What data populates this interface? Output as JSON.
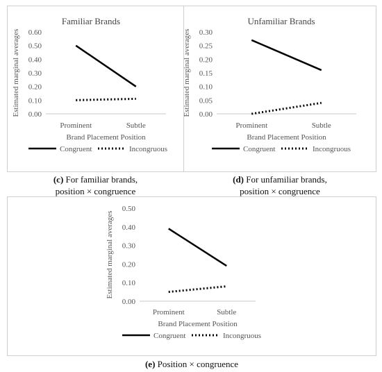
{
  "chart_data": [
    {
      "type": "line",
      "title": "Familiar Brands",
      "xlabel": "Brand Placement Position",
      "ylabel": "Estimated marginal averages",
      "categories": [
        "Prominent",
        "Subtle"
      ],
      "ylim": [
        0,
        0.6
      ],
      "yticks": [
        "0.00",
        "0.10",
        "0.20",
        "0.30",
        "0.40",
        "0.50",
        "0.60"
      ],
      "series": [
        {
          "name": "Congruent",
          "values": [
            0.5,
            0.2
          ],
          "style": "solid"
        },
        {
          "name": "Incongruous",
          "values": [
            0.1,
            0.11
          ],
          "style": "dotted"
        }
      ],
      "legend": "bottom",
      "caption_letter": "(c)",
      "caption_line1": " For familiar brands,",
      "caption_line2": "position × congruence"
    },
    {
      "type": "line",
      "title": "Unfamiliar Brands",
      "xlabel": "Brand Placement Position",
      "ylabel": "Estimated marginal averages",
      "categories": [
        "Prominent",
        "Subtle"
      ],
      "ylim": [
        0,
        0.3
      ],
      "yticks": [
        "0.00",
        "0.05",
        "0.10",
        "0.15",
        "0.20",
        "0.25",
        "0.30"
      ],
      "series": [
        {
          "name": "Congruent",
          "values": [
            0.27,
            0.16
          ],
          "style": "solid"
        },
        {
          "name": "Incongruous",
          "values": [
            0.0,
            0.04
          ],
          "style": "dotted"
        }
      ],
      "legend": "bottom",
      "caption_letter": "(d)",
      "caption_line1": " For unfamiliar brands,",
      "caption_line2": "position × congruence"
    },
    {
      "type": "line",
      "title": "",
      "xlabel": "Brand Placement Position",
      "ylabel": "Estimated marginal averages",
      "categories": [
        "Prominent",
        "Subtle"
      ],
      "ylim": [
        0,
        0.5
      ],
      "yticks": [
        "0.00",
        "0.10",
        "0.20",
        "0.30",
        "0.40",
        "0.50"
      ],
      "series": [
        {
          "name": "Congruent",
          "values": [
            0.39,
            0.19
          ],
          "style": "solid"
        },
        {
          "name": "Incongruous",
          "values": [
            0.05,
            0.08
          ],
          "style": "dotted"
        }
      ],
      "legend": "bottom",
      "caption_letter": "(e)",
      "caption_line1": " Position × congruence",
      "caption_line2": ""
    }
  ]
}
